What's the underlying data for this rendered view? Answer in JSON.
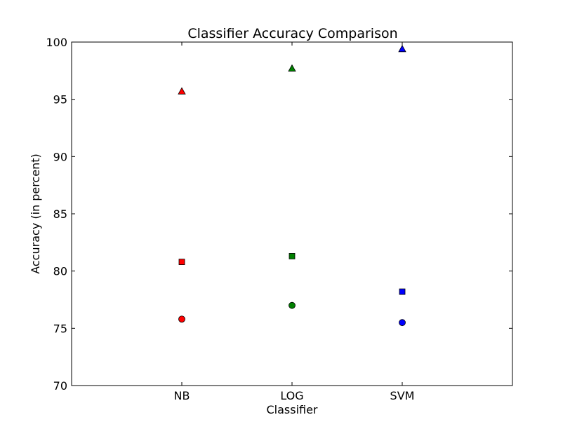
{
  "chart_data": {
    "type": "scatter",
    "title": "Classifier Accuracy Comparison",
    "xlabel": "Classifier",
    "ylabel": "Accuracy (in percent)",
    "categories": [
      "NB",
      "LOG",
      "SVM"
    ],
    "ylim": [
      70,
      100
    ],
    "yticks": [
      70,
      75,
      80,
      85,
      90,
      95,
      100
    ],
    "ytick_labels": [
      "70",
      "75",
      "80",
      "85",
      "90",
      "95",
      "100"
    ],
    "xlim": [
      0,
      4
    ],
    "grid": false,
    "legend": "none",
    "series": [
      {
        "marker": "triangle",
        "values": [
          95.7,
          97.7,
          99.4
        ]
      },
      {
        "marker": "square",
        "values": [
          80.8,
          81.3,
          78.2
        ]
      },
      {
        "marker": "circle",
        "values": [
          75.8,
          77.0,
          75.5
        ]
      }
    ],
    "category_colors": [
      "#ff0000",
      "#008000",
      "#0000ff"
    ]
  }
}
